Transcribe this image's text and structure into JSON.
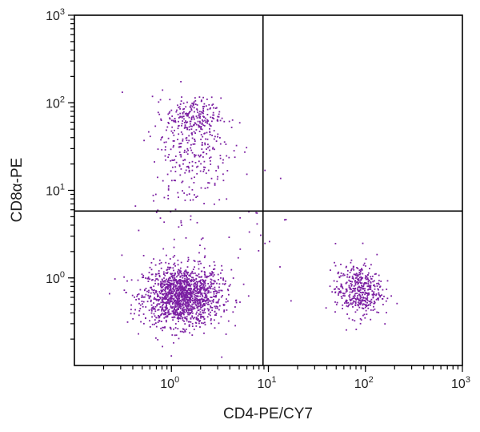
{
  "chart_data": {
    "type": "scatter",
    "xlabel": "CD4-PE/CY7",
    "ylabel": "CD8α-PE",
    "x_scale": "log",
    "y_scale": "log",
    "xlim": [
      0.1,
      1000
    ],
    "ylim": [
      0.1,
      1000
    ],
    "x_ticks": [
      {
        "base": "10",
        "exp": "0",
        "value": 1
      },
      {
        "base": "10",
        "exp": "1",
        "value": 10
      },
      {
        "base": "10",
        "exp": "2",
        "value": 100
      },
      {
        "base": "10",
        "exp": "3",
        "value": 1000
      }
    ],
    "y_ticks": [
      {
        "base": "10",
        "exp": "0",
        "value": 1
      },
      {
        "base": "10",
        "exp": "1",
        "value": 10
      },
      {
        "base": "10",
        "exp": "2",
        "value": 100
      },
      {
        "base": "10",
        "exp": "3",
        "value": 1000
      }
    ],
    "gates": {
      "x": 8.8,
      "y": 5.8
    },
    "point_color": "#7b1fa2",
    "populations": [
      {
        "center": [
          1.3,
          0.62
        ],
        "spread": [
          0.2,
          0.17
        ],
        "count": 1500
      },
      {
        "center": [
          1.7,
          68
        ],
        "spread": [
          0.14,
          0.11
        ],
        "count": 200
      },
      {
        "center": [
          1.6,
          28
        ],
        "spread": [
          0.21,
          0.32
        ],
        "count": 260
      },
      {
        "center": [
          85,
          0.72
        ],
        "spread": [
          0.12,
          0.15
        ],
        "count": 430
      },
      {
        "center": [
          3,
          3
        ],
        "spread": [
          0.45,
          0.45
        ],
        "count": 60
      }
    ],
    "grid": false,
    "legend": "none"
  }
}
